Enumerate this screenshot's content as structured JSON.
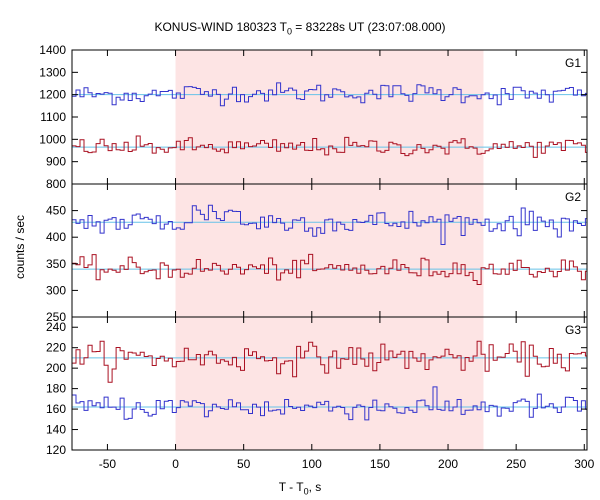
{
  "title": {
    "main": "KONUS-WIND 180323 T",
    "sub": "0",
    "rest": " = 83228s UT (23:07:08.000)"
  },
  "xlabel": {
    "main": "T - T",
    "sub": "0",
    "rest": ", s"
  },
  "ylabel": "counts / sec",
  "colors": {
    "blue": "#3333cc",
    "red": "#aa1122",
    "fit": "#66c2e8",
    "shade": "#fde4e4",
    "frame": "#000000"
  },
  "chart_data": {
    "type": "line",
    "style": "step",
    "shared_x": {
      "xlim": [
        -76,
        302
      ],
      "ticks": [
        -50,
        0,
        50,
        100,
        150,
        200,
        250,
        300
      ],
      "tick_labels": [
        "-50",
        "0",
        "50",
        "100",
        "150",
        "200",
        "250",
        "300"
      ],
      "bin_width": 2.944
    },
    "highlight_interval": [
      0,
      226
    ],
    "panels": [
      {
        "label": "G1",
        "ylim": [
          800,
          1400
        ],
        "yticks": [
          800,
          900,
          1000,
          1100,
          1200,
          1300,
          1400
        ],
        "ytick_labels": [
          "800",
          "900",
          "1000",
          "1100",
          "1200",
          "1300",
          "1400"
        ],
        "series": [
          {
            "color": "blue",
            "mean": 1200,
            "noise": 22,
            "bump": [
              [
                0,
                226,
                8
              ]
            ]
          },
          {
            "color": "red",
            "mean": 965,
            "noise": 20,
            "bump": []
          }
        ],
        "backgrounds": [
          1200,
          965
        ]
      },
      {
        "label": "G2",
        "ylim": [
          250,
          500
        ],
        "yticks": [
          250,
          300,
          350,
          400,
          450
        ],
        "ytick_labels": [
          "250",
          "300",
          "350",
          "400",
          "450"
        ],
        "series": [
          {
            "color": "blue",
            "mean": 428,
            "noise": 12,
            "bump": [
              [
                10,
                45,
                18
              ]
            ]
          },
          {
            "color": "red",
            "mean": 340,
            "noise": 10,
            "bump": []
          }
        ],
        "backgrounds": [
          428,
          340
        ]
      },
      {
        "label": "G3",
        "ylim": [
          120,
          250
        ],
        "yticks": [
          120,
          140,
          160,
          180,
          200,
          220,
          240
        ],
        "ytick_labels": [
          "120",
          "140",
          "160",
          "180",
          "200",
          "220",
          "240"
        ],
        "series": [
          {
            "color": "red",
            "mean": 210,
            "noise": 7,
            "bump": []
          },
          {
            "color": "blue",
            "mean": 162,
            "noise": 6,
            "bump": []
          }
        ],
        "backgrounds": [
          210,
          162
        ]
      }
    ]
  }
}
